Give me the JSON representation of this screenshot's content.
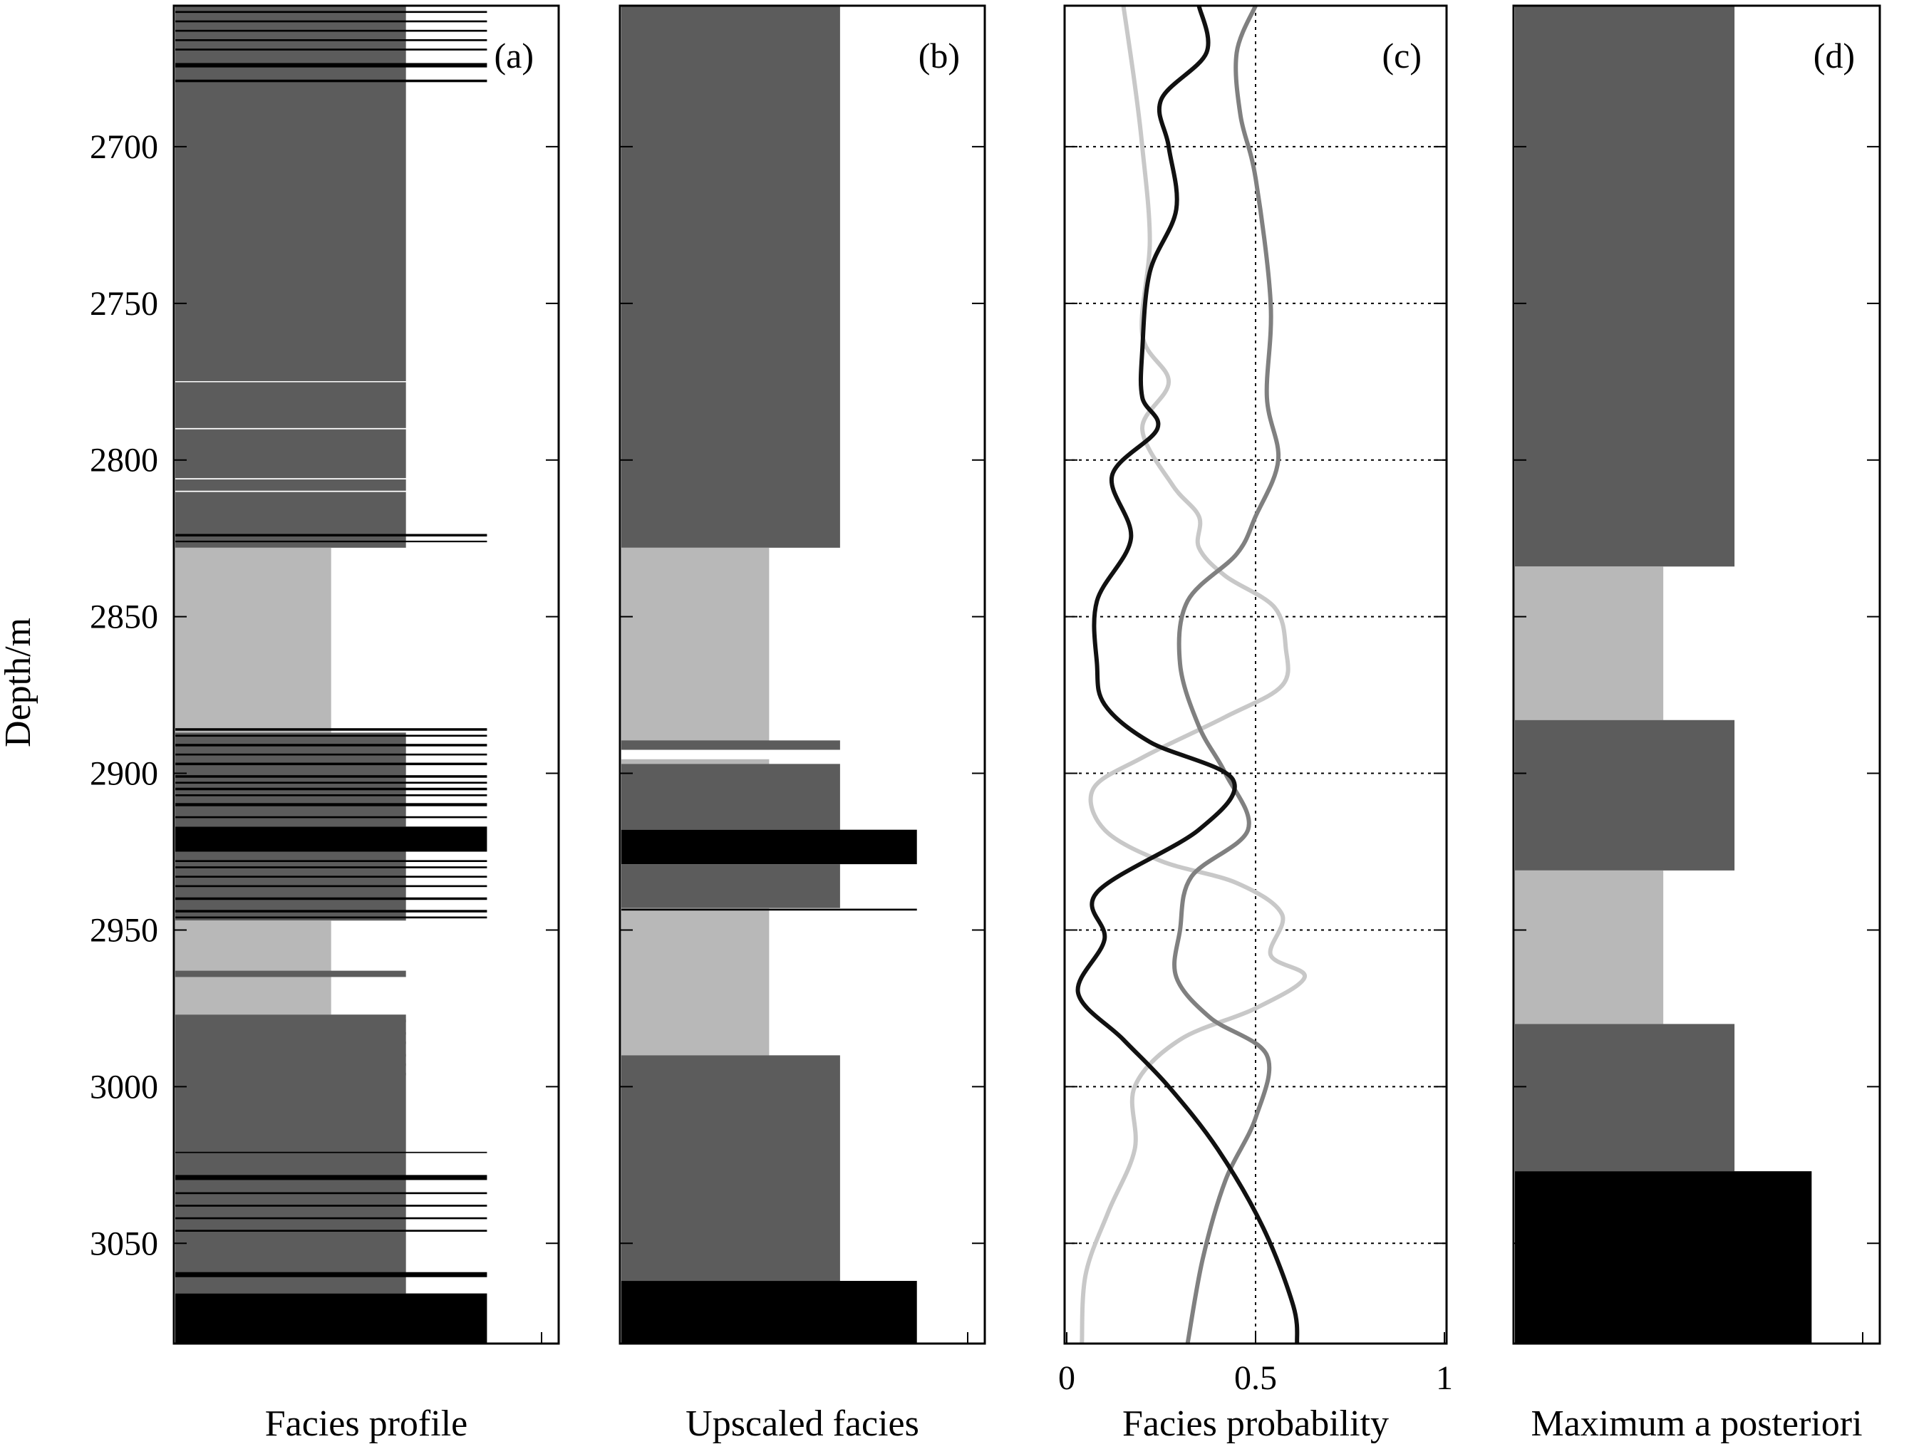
{
  "figure": {
    "ylabel": "Depth/m",
    "y_ticks": [
      2700,
      2750,
      2800,
      2850,
      2900,
      2950,
      3000,
      3050
    ],
    "ylim": [
      2655,
      3082
    ],
    "colors": {
      "dark_gray": "#5c5c5c",
      "light_gray": "#b8b8b8",
      "black": "#000000",
      "curve_light": "#c8c8c8",
      "curve_mid": "#808080",
      "curve_dark": "#111111"
    }
  },
  "chart_data": [
    {
      "type": "bar",
      "panel": "(a)",
      "xlabel": "Facies profile",
      "ylim": [
        2655,
        3082
      ],
      "segments": [
        {
          "top": 2655,
          "bottom": 2828,
          "facies": "dark"
        },
        {
          "top": 2828,
          "bottom": 2887,
          "facies": "light"
        },
        {
          "top": 2887,
          "bottom": 2917,
          "facies": "dark"
        },
        {
          "top": 2917,
          "bottom": 2925,
          "facies": "black"
        },
        {
          "top": 2925,
          "bottom": 2947,
          "facies": "dark"
        },
        {
          "top": 2947,
          "bottom": 2977,
          "facies": "light"
        },
        {
          "top": 2977,
          "bottom": 3066,
          "facies": "dark"
        },
        {
          "top": 3066,
          "bottom": 3082,
          "facies": "black"
        }
      ],
      "thin_layers": [
        {
          "depth": 2657,
          "facies": "black",
          "thickness": 0.6
        },
        {
          "depth": 2660,
          "facies": "black",
          "thickness": 0.6
        },
        {
          "depth": 2663,
          "facies": "black",
          "thickness": 0.6
        },
        {
          "depth": 2666,
          "facies": "black",
          "thickness": 0.6
        },
        {
          "depth": 2669,
          "facies": "black",
          "thickness": 0.6
        },
        {
          "depth": 2674,
          "facies": "black",
          "thickness": 1.4
        },
        {
          "depth": 2679,
          "facies": "black",
          "thickness": 0.8
        },
        {
          "depth": 2775,
          "facies": "white",
          "thickness": 0.3
        },
        {
          "depth": 2790,
          "facies": "white",
          "thickness": 0.4
        },
        {
          "depth": 2806,
          "facies": "white",
          "thickness": 0.4
        },
        {
          "depth": 2810,
          "facies": "white",
          "thickness": 0.4
        },
        {
          "depth": 2824,
          "facies": "black",
          "thickness": 0.8
        },
        {
          "depth": 2826,
          "facies": "black",
          "thickness": 0.5
        },
        {
          "depth": 2886,
          "facies": "black",
          "thickness": 0.8
        },
        {
          "depth": 2888,
          "facies": "black",
          "thickness": 0.6
        },
        {
          "depth": 2891,
          "facies": "black",
          "thickness": 0.8
        },
        {
          "depth": 2894,
          "facies": "black",
          "thickness": 0.6
        },
        {
          "depth": 2897,
          "facies": "black",
          "thickness": 0.8
        },
        {
          "depth": 2901,
          "facies": "black",
          "thickness": 0.8
        },
        {
          "depth": 2903,
          "facies": "black",
          "thickness": 0.6
        },
        {
          "depth": 2905,
          "facies": "black",
          "thickness": 0.8
        },
        {
          "depth": 2907,
          "facies": "black",
          "thickness": 0.6
        },
        {
          "depth": 2910,
          "facies": "black",
          "thickness": 1.0
        },
        {
          "depth": 2914,
          "facies": "black",
          "thickness": 0.6
        },
        {
          "depth": 2928,
          "facies": "black",
          "thickness": 0.6
        },
        {
          "depth": 2930,
          "facies": "black",
          "thickness": 0.6
        },
        {
          "depth": 2933,
          "facies": "black",
          "thickness": 0.6
        },
        {
          "depth": 2936,
          "facies": "black",
          "thickness": 0.6
        },
        {
          "depth": 2940,
          "facies": "black",
          "thickness": 0.8
        },
        {
          "depth": 2944,
          "facies": "black",
          "thickness": 0.8
        },
        {
          "depth": 2946,
          "facies": "black",
          "thickness": 0.6
        },
        {
          "depth": 2964,
          "facies": "dark",
          "thickness": 2.0
        },
        {
          "depth": 2979,
          "facies": "dark",
          "thickness": 0.8
        },
        {
          "depth": 2983,
          "facies": "dark",
          "thickness": 0.8
        },
        {
          "depth": 2986,
          "facies": "dark",
          "thickness": 0.8
        },
        {
          "depth": 2990,
          "facies": "dark",
          "thickness": 0.8
        },
        {
          "depth": 2993,
          "facies": "dark",
          "thickness": 0.8
        },
        {
          "depth": 2996,
          "facies": "dark",
          "thickness": 0.8
        },
        {
          "depth": 3021,
          "facies": "black",
          "thickness": 0.4
        },
        {
          "depth": 3029,
          "facies": "black",
          "thickness": 1.6
        },
        {
          "depth": 3034,
          "facies": "black",
          "thickness": 0.6
        },
        {
          "depth": 3038,
          "facies": "black",
          "thickness": 0.6
        },
        {
          "depth": 3042,
          "facies": "black",
          "thickness": 0.6
        },
        {
          "depth": 3046,
          "facies": "black",
          "thickness": 0.6
        },
        {
          "depth": 3060,
          "facies": "black",
          "thickness": 1.6
        }
      ]
    },
    {
      "type": "bar",
      "panel": "(b)",
      "xlabel": "Upscaled facies",
      "ylim": [
        2655,
        3082
      ],
      "segments": [
        {
          "top": 2655,
          "bottom": 2828,
          "facies": "dark"
        },
        {
          "top": 2828,
          "bottom": 2897,
          "facies": "light"
        },
        {
          "top": 2897,
          "bottom": 2918,
          "facies": "dark"
        },
        {
          "top": 2918,
          "bottom": 2929,
          "facies": "black"
        },
        {
          "top": 2929,
          "bottom": 2943,
          "facies": "dark"
        },
        {
          "top": 2943,
          "bottom": 2990,
          "facies": "light"
        },
        {
          "top": 2990,
          "bottom": 3062,
          "facies": "dark"
        },
        {
          "top": 3062,
          "bottom": 3082,
          "facies": "black"
        }
      ],
      "thin_layers": [
        {
          "depth": 2891,
          "facies": "dark",
          "thickness": 3.0
        },
        {
          "depth": 2894,
          "facies": "white",
          "thickness": 3.0
        },
        {
          "depth": 2943.5,
          "facies": "black",
          "thickness": 0.6
        }
      ]
    },
    {
      "type": "line",
      "panel": "(c)",
      "xlabel": "Facies probability",
      "xlim": [
        0,
        1
      ],
      "x_ticks": [
        0,
        0.5,
        1
      ],
      "ylim": [
        2655,
        3082
      ],
      "gridlines": "dotted",
      "series": [
        {
          "color": "#c8c8c8",
          "points": [
            [
              0.15,
              2655
            ],
            [
              0.18,
              2680
            ],
            [
              0.2,
              2700
            ],
            [
              0.22,
              2730
            ],
            [
              0.2,
              2760
            ],
            [
              0.27,
              2775
            ],
            [
              0.2,
              2790
            ],
            [
              0.28,
              2808
            ],
            [
              0.35,
              2818
            ],
            [
              0.35,
              2828
            ],
            [
              0.42,
              2837
            ],
            [
              0.55,
              2847
            ],
            [
              0.58,
              2860
            ],
            [
              0.57,
              2872
            ],
            [
              0.42,
              2882
            ],
            [
              0.2,
              2895
            ],
            [
              0.07,
              2905
            ],
            [
              0.1,
              2918
            ],
            [
              0.25,
              2928
            ],
            [
              0.45,
              2935
            ],
            [
              0.57,
              2945
            ],
            [
              0.54,
              2958
            ],
            [
              0.63,
              2965
            ],
            [
              0.5,
              2975
            ],
            [
              0.3,
              2985
            ],
            [
              0.18,
              3000
            ],
            [
              0.18,
              3020
            ],
            [
              0.11,
              3040
            ],
            [
              0.05,
              3060
            ],
            [
              0.04,
              3082
            ]
          ]
        },
        {
          "color": "#808080",
          "points": [
            [
              0.5,
              2655
            ],
            [
              0.45,
              2670
            ],
            [
              0.46,
              2690
            ],
            [
              0.5,
              2710
            ],
            [
              0.54,
              2750
            ],
            [
              0.53,
              2780
            ],
            [
              0.56,
              2800
            ],
            [
              0.5,
              2818
            ],
            [
              0.45,
              2830
            ],
            [
              0.32,
              2845
            ],
            [
              0.3,
              2865
            ],
            [
              0.35,
              2885
            ],
            [
              0.42,
              2900
            ],
            [
              0.48,
              2918
            ],
            [
              0.33,
              2933
            ],
            [
              0.3,
              2950
            ],
            [
              0.29,
              2965
            ],
            [
              0.38,
              2978
            ],
            [
              0.53,
              2990
            ],
            [
              0.5,
              3010
            ],
            [
              0.42,
              3030
            ],
            [
              0.36,
              3055
            ],
            [
              0.32,
              3082
            ]
          ]
        },
        {
          "color": "#111111",
          "points": [
            [
              0.35,
              2655
            ],
            [
              0.37,
              2670
            ],
            [
              0.25,
              2685
            ],
            [
              0.27,
              2700
            ],
            [
              0.29,
              2720
            ],
            [
              0.22,
              2740
            ],
            [
              0.2,
              2765
            ],
            [
              0.2,
              2780
            ],
            [
              0.24,
              2790
            ],
            [
              0.12,
              2805
            ],
            [
              0.17,
              2825
            ],
            [
              0.08,
              2845
            ],
            [
              0.08,
              2865
            ],
            [
              0.1,
              2878
            ],
            [
              0.22,
              2890
            ],
            [
              0.44,
              2902
            ],
            [
              0.35,
              2918
            ],
            [
              0.08,
              2938
            ],
            [
              0.1,
              2953
            ],
            [
              0.03,
              2970
            ],
            [
              0.15,
              2985
            ],
            [
              0.27,
              3000
            ],
            [
              0.4,
              3020
            ],
            [
              0.52,
              3045
            ],
            [
              0.6,
              3070
            ],
            [
              0.61,
              3082
            ]
          ]
        }
      ]
    },
    {
      "type": "bar",
      "panel": "(d)",
      "xlabel": "Maximum a posteriori",
      "ylim": [
        2655,
        3082
      ],
      "segments": [
        {
          "top": 2655,
          "bottom": 2834,
          "facies": "dark"
        },
        {
          "top": 2834,
          "bottom": 2883,
          "facies": "light"
        },
        {
          "top": 2883,
          "bottom": 2931,
          "facies": "dark"
        },
        {
          "top": 2931,
          "bottom": 2980,
          "facies": "light"
        },
        {
          "top": 2980,
          "bottom": 3027,
          "facies": "dark"
        },
        {
          "top": 3027,
          "bottom": 3082,
          "facies": "black"
        }
      ],
      "thin_layers": []
    }
  ]
}
